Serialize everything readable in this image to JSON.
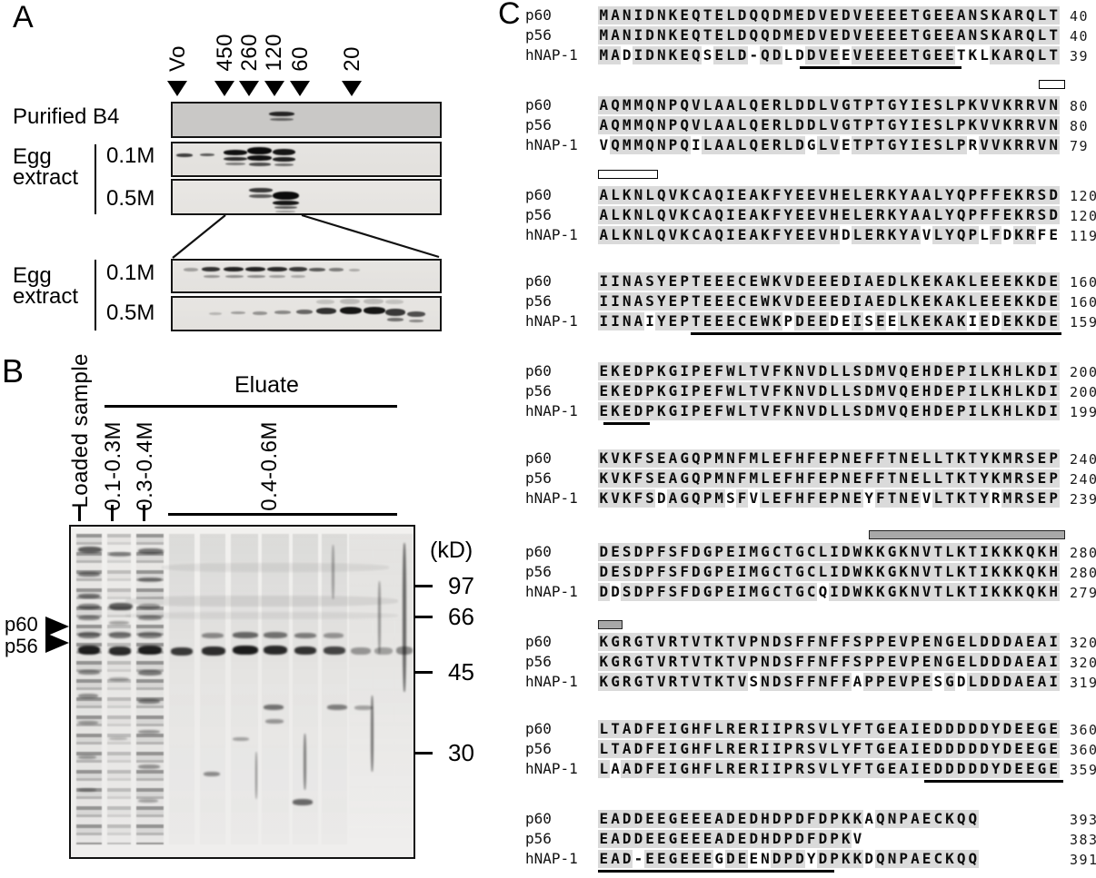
{
  "panel_a": {
    "label": "A",
    "lane_labels": [
      "Vo",
      "450",
      "260",
      "120",
      "60",
      "20"
    ],
    "purified_label": "Purified B4",
    "egg_extract_label_1": "Egg\nextract",
    "egg_extract_label_2": "Egg\nextract",
    "strip_labels": [
      "0.1M",
      "0.5M",
      "0.1M",
      "0.5M"
    ]
  },
  "panel_b": {
    "label": "B",
    "loaded_sample": "Loaded sample",
    "eluate": "Eluate",
    "fractions": [
      "0.1-0.3M",
      "0.3-0.4M",
      "0.4-0.6M"
    ],
    "kd_label": "(kD)",
    "markers": [
      "97",
      "66",
      "45",
      "30"
    ],
    "protein_labels": [
      "p60",
      "p56"
    ]
  },
  "panel_c": {
    "label": "C",
    "shading_color": "#dadada",
    "blocks": [
      {
        "rows": [
          {
            "name": "p60",
            "seq": "MANIDNKEQTELDQQDMEDVEDVEEEETGEEANSKARQLT",
            "num": "40"
          },
          {
            "name": "p56",
            "seq": "MANIDNKEQTELDQQDMEDVEDVEEEETGEEANSKARQLT",
            "num": "40"
          },
          {
            "name": "hNAP-1",
            "seq": "MADIDNKEQSELD-QDLDDVEEVEEEETGEETKLKARQLT",
            "num": "39"
          }
        ],
        "bars": [
          {
            "type": "underline",
            "start": 17.5,
            "end": 31.5
          }
        ]
      },
      {
        "rows": [
          {
            "name": "p60",
            "seq": "AQMMQNPQVLAALQERLDDLVGTPTGYIESLPKVVKRRVN",
            "num": "80"
          },
          {
            "name": "p56",
            "seq": "AQMMQNPQVLAALQERLDDLVGTPTGYIESLPKVVKRRVN",
            "num": "80"
          },
          {
            "name": "hNAP-1",
            "seq": "VQMMQNPQILAALQERLDGLVETPTGYIESLPRVVKRRVN",
            "num": "79"
          }
        ],
        "bars": [
          {
            "type": "open",
            "start": 38.2,
            "end": 40.3
          }
        ]
      },
      {
        "rows": [
          {
            "name": "p60",
            "seq": "ALKNLQVKCAQIEAKFYEEVHELERKYAALYQPFFEKRSD",
            "num": "120"
          },
          {
            "name": "p56",
            "seq": "ALKNLQVKCAQIEAKFYEEVHELERKYAALYQPFFEKRSD",
            "num": "120"
          },
          {
            "name": "hNAP-1",
            "seq": "ALKNLQVKCAQIEAKFYEEVHDLERKYAVLYQPLFDKRFE",
            "num": "119"
          }
        ],
        "bars": [
          {
            "type": "open",
            "start": 0,
            "end": 5
          }
        ]
      },
      {
        "rows": [
          {
            "name": "p60",
            "seq": "IINASYEPTEEECEWKVDEEEDIAEDLKEKAKLEEEKKDE",
            "num": "160"
          },
          {
            "name": "p56",
            "seq": "IINASYEPTEEECEWKVDEEEDIAEDLKEKAKLEEEKKDE",
            "num": "160"
          },
          {
            "name": "hNAP-1",
            "seq": "IINAIYEPTEEECEWKPDEEDEISEELKEKAKIEDEKKDE",
            "num": "159"
          }
        ],
        "bars": [
          {
            "type": "underline",
            "start": 8,
            "end": 40.2
          }
        ]
      },
      {
        "rows": [
          {
            "name": "p60",
            "seq": "EKEDPKGIPEFWLTVFKNVDLLSDMVQEHDEPILKHLKDI",
            "num": "200"
          },
          {
            "name": "p56",
            "seq": "EKEDPKGIPEFWLTVFKNVDLLSDMVQEHDEPILKHLKDI",
            "num": "200"
          },
          {
            "name": "hNAP-1",
            "seq": "EKEDPKGIPEFWLTVFKNVDLLSDMVQEHDEPILKHLKDI",
            "num": "199"
          }
        ],
        "bars": [
          {
            "type": "underline",
            "start": 0.5,
            "end": 4.5
          }
        ]
      },
      {
        "rows": [
          {
            "name": "p60",
            "seq": "KVKFSEAGQPMNFMLEFHFEPNEFFTNELLTKTYKMRSEP",
            "num": "240"
          },
          {
            "name": "p56",
            "seq": "KVKFSEAGQPMNFMLEFHFEPNEFFTNELLTKTYKMRSEP",
            "num": "240"
          },
          {
            "name": "hNAP-1",
            "seq": "KVKFSDAGQPMSFVLEFHFEPNEYFTNEVLTKTYRMRSEP",
            "num": "239"
          }
        ],
        "bars": []
      },
      {
        "rows": [
          {
            "name": "p60",
            "seq": "DESDPFSFDGPEIMGCTGCLIDWKKGKNVTLKTIKKKQKH",
            "num": "280"
          },
          {
            "name": "p56",
            "seq": "DESDPFSFDGPEIMGCTGCLIDWKKGKNVTLKTIKKKQKH",
            "num": "280"
          },
          {
            "name": "hNAP-1",
            "seq": "DDSDPFSFDGPEIMGCTGCQIDWKKGKNVTLKTIKKKQKH",
            "num": "279"
          }
        ],
        "bars": [
          {
            "type": "gray",
            "start": 23.5,
            "end": 40.3
          }
        ]
      },
      {
        "rows": [
          {
            "name": "p60",
            "seq": "KGRGTVRTVTKTVPNDSFFNFFSPPEVPENGELDDDAEAI",
            "num": "320"
          },
          {
            "name": "p56",
            "seq": "KGRGTVRTVTKTVPNDSFFNFFSPPEVPENGELDDDAEAI",
            "num": "320"
          },
          {
            "name": "hNAP-1",
            "seq": "KGRGTVRTVTKTVSNDSFFNFFAPPEVPESGDLDDDAEAI",
            "num": "319"
          }
        ],
        "bars": [
          {
            "type": "gray",
            "start": 0,
            "end": 2
          }
        ]
      },
      {
        "rows": [
          {
            "name": "p60",
            "seq": "LTADFEIGHFLRERIIPRSVLYFTGEAIEDDDDDYDEEGE",
            "num": "360"
          },
          {
            "name": "p56",
            "seq": "LTADFEIGHFLRERIIPRSVLYFTGEAIEDDDDDYDEEGE",
            "num": "360"
          },
          {
            "name": "hNAP-1",
            "seq": "LAADFEIGHFLRERIIPRSVLYFTGEAIEDDDDDYDEEGE",
            "num": "359"
          }
        ],
        "bars": [
          {
            "type": "underline",
            "start": 28.3,
            "end": 40.3
          }
        ]
      },
      {
        "rows": [
          {
            "name": "p60",
            "seq": "EADDEEGEEEADEDHDPDFDPKKAQNPAECKQQ",
            "num": "393"
          },
          {
            "name": "p56",
            "seq": "EADDEEGEEEADEDHDPDFDPKV",
            "num": "383"
          },
          {
            "name": "hNAP-1",
            "seq": "EAD-EEGEEEGDEENDPDYDPKKDQNPAECKQQ",
            "num": "391"
          }
        ],
        "bars": [
          {
            "type": "underline",
            "start": 0,
            "end": 20.5
          }
        ]
      }
    ]
  }
}
